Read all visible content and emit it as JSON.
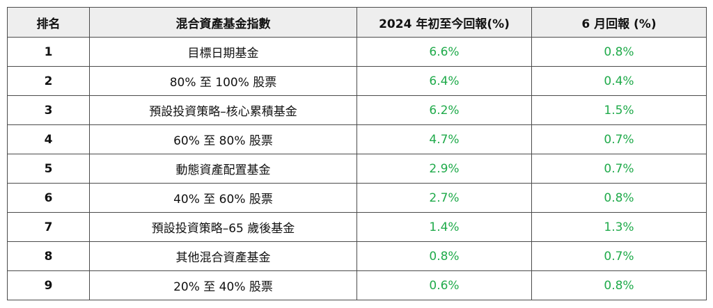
{
  "table": {
    "headers": [
      "排名",
      "混合資產基金指數",
      "2024 年初至今回報(%)",
      "6 月回報 (%)"
    ],
    "rows": [
      {
        "rank": "1",
        "name": "目標日期基金",
        "ytd": "6.6%",
        "june": "0.8%"
      },
      {
        "rank": "2",
        "name": "80% 至 100% 股票",
        "ytd": "6.4%",
        "june": "0.4%"
      },
      {
        "rank": "3",
        "name": "預設投資策略–核心累積基金",
        "ytd": "6.2%",
        "june": "1.5%"
      },
      {
        "rank": "4",
        "name": "60% 至 80% 股票",
        "ytd": "4.7%",
        "june": "0.7%"
      },
      {
        "rank": "5",
        "name": "動態資產配置基金",
        "ytd": "2.9%",
        "june": "0.7%"
      },
      {
        "rank": "6",
        "name": "40% 至 60% 股票",
        "ytd": "2.7%",
        "june": "0.8%"
      },
      {
        "rank": "7",
        "name": "預設投資策略–65 歲後基金",
        "ytd": "1.4%",
        "june": "1.3%"
      },
      {
        "rank": "8",
        "name": "其他混合資產基金",
        "ytd": "0.8%",
        "june": "0.7%"
      },
      {
        "rank": "9",
        "name": "20% 至 40% 股票",
        "ytd": "0.6%",
        "june": "0.8%"
      }
    ]
  },
  "colors": {
    "return_value": "#1faa4a",
    "header_background": "#eeeeee",
    "border": "#4a4a4a"
  }
}
